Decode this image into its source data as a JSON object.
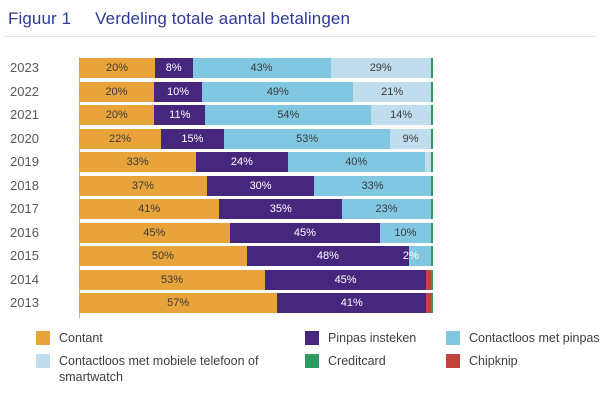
{
  "title": {
    "prefix": "Figuur 1",
    "text": "Verdeling totale aantal betalingen"
  },
  "colors": {
    "contant": "#E8A33B",
    "pinpas_insteken": "#46277E",
    "contactloos_met_pinpas": "#82C7E1",
    "contactloos_mobiel": "#BFDDEC",
    "creditcard": "#2D9A5F",
    "chipknip": "#C2433B",
    "title_text": "#2E3A97",
    "year_label": "#595959",
    "label_dark": "#3A3A3A",
    "label_light": "#FFFFFF",
    "axis_line": "#B3B3B3"
  },
  "chart_data": {
    "type": "bar",
    "orientation": "horizontal",
    "stacked": true,
    "title": "Figuur 1  Verdeling totale aantal betalingen",
    "xlabel": "",
    "ylabel": "",
    "unit": "%",
    "xlim": [
      0,
      100
    ],
    "grid": false,
    "legend_position": "bottom",
    "categories": [
      "2023",
      "2022",
      "2021",
      "2020",
      "2019",
      "2018",
      "2017",
      "2016",
      "2015",
      "2014",
      "2013"
    ],
    "series": [
      {
        "key": "contant",
        "name": "Contant",
        "colorKey": "contant",
        "label_color": "#3A3A3A",
        "values": [
          20,
          20,
          20,
          22,
          33,
          37,
          41,
          45,
          50,
          53,
          57
        ],
        "labels": [
          "20%",
          "20%",
          "20%",
          "22%",
          "33%",
          "37%",
          "41%",
          "45%",
          "50%",
          "53%",
          "57%"
        ]
      },
      {
        "key": "pinpas-insteken",
        "name": "Pinpas insteken",
        "colorKey": "pinpas_insteken",
        "label_color": "#FFFFFF",
        "values": [
          8,
          10,
          11,
          15,
          24,
          30,
          35,
          45,
          48,
          45,
          41
        ],
        "labels": [
          "8%",
          "10%",
          "11%",
          "15%",
          "24%",
          "30%",
          "35%",
          "45%",
          "48%",
          "45%",
          "41%"
        ]
      },
      {
        "key": "contactloos-met-pinpas",
        "name": "Contactloos met pinpas",
        "colorKey": "contactloos_met_pinpas",
        "label_color": "#3A3A3A",
        "values": [
          43,
          49,
          54,
          53,
          40,
          33,
          23,
          10,
          2,
          0,
          0
        ],
        "labels": [
          "43%",
          "49%",
          "54%",
          "53%",
          "40%",
          "33%",
          "23%",
          "10%",
          "2%",
          "",
          ""
        ]
      },
      {
        "key": "contactloos-mobiel",
        "name": "Contactloos met mobiele telefoon of smartwatch",
        "colorKey": "contactloos_mobiel",
        "label_color": "#3A3A3A",
        "values": [
          29,
          21,
          14,
          9,
          2,
          0,
          0,
          0,
          0,
          0,
          0
        ],
        "labels": [
          "29%",
          "21%",
          "14%",
          "9%",
          "",
          "",
          "",
          "",
          "",
          "",
          ""
        ]
      },
      {
        "key": "chipknip",
        "name": "Chipknip",
        "colorKey": "chipknip",
        "label_color": "#FFFFFF",
        "values": [
          0,
          0,
          0,
          0,
          0,
          0,
          0,
          0,
          0,
          1.5,
          1.5
        ],
        "labels": [
          "",
          "",
          "",
          "",
          "",
          "",
          "",
          "",
          "",
          "",
          ""
        ]
      },
      {
        "key": "creditcard",
        "name": "Creditcard",
        "colorKey": "creditcard",
        "label_color": "#FFFFFF",
        "values": [
          0.8,
          0.8,
          0.8,
          0.8,
          0.8,
          0.8,
          0.8,
          0.8,
          0.8,
          0.7,
          0.7
        ],
        "labels": [
          "",
          "",
          "",
          "",
          "",
          "",
          "",
          "",
          "",
          "",
          ""
        ]
      }
    ]
  },
  "legend": {
    "columns": [
      [
        {
          "key": "contant",
          "colorKey": "contant",
          "label": "Contant"
        },
        {
          "key": "contactloos-mobiel",
          "colorKey": "contactloos_mobiel",
          "label": "Contactloos met mobiele telefoon of smartwatch"
        }
      ],
      [
        {
          "key": "pinpas-insteken",
          "colorKey": "pinpas_insteken",
          "label": "Pinpas insteken"
        },
        {
          "key": "creditcard",
          "colorKey": "creditcard",
          "label": "Creditcard"
        }
      ],
      [
        {
          "key": "contactloos-met-pinpas",
          "colorKey": "contactloos_met_pinpas",
          "label": "Contactloos met pinpas"
        },
        {
          "key": "chipknip",
          "colorKey": "chipknip",
          "label": "Chipknip"
        }
      ]
    ]
  }
}
